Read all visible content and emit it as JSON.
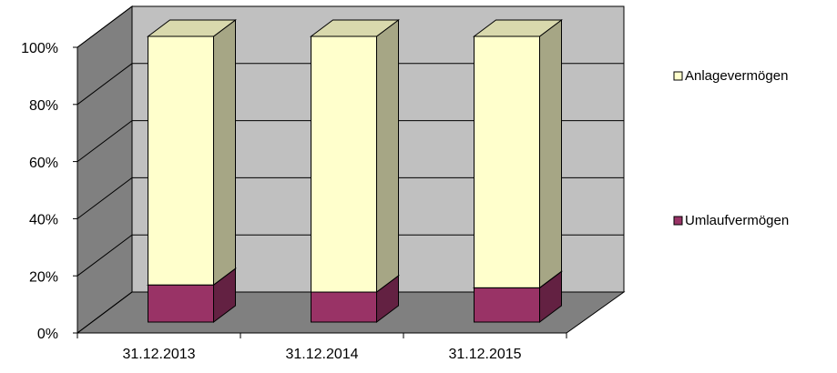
{
  "chart_data": {
    "type": "bar3d_stacked",
    "categories": [
      "31.12.2013",
      "31.12.2014",
      "31.12.2015"
    ],
    "series": [
      {
        "name": "Umlaufvermögen",
        "color": "#993366",
        "values": [
          13,
          10.5,
          12
        ]
      },
      {
        "name": "Anlagevermögen",
        "color": "#ffffcc",
        "values": [
          87,
          89.5,
          88
        ]
      }
    ],
    "ylim": [
      0,
      100
    ],
    "yticks": [
      {
        "value": 0,
        "label": "0%"
      },
      {
        "value": 20,
        "label": "20%"
      },
      {
        "value": 40,
        "label": "40%"
      },
      {
        "value": 60,
        "label": "60%"
      },
      {
        "value": 80,
        "label": "80%"
      },
      {
        "value": 100,
        "label": "100%"
      }
    ],
    "grid": true,
    "legend": "right"
  }
}
